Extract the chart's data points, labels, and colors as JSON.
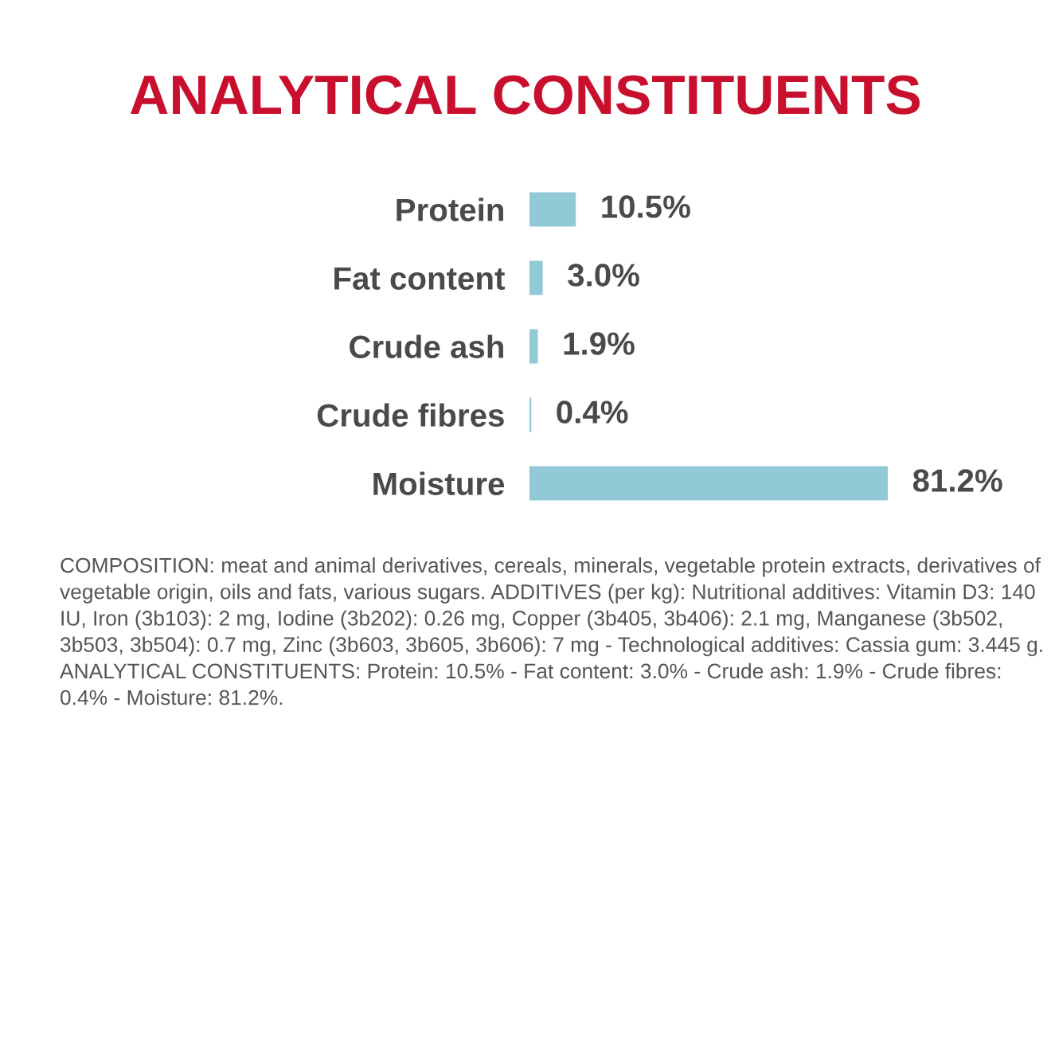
{
  "chart_data": {
    "type": "bar",
    "orientation": "horizontal",
    "title": "ANALYTICAL CONSTITUENTS",
    "categories": [
      "Protein",
      "Fat content",
      "Crude ash",
      "Crude fibres",
      "Moisture"
    ],
    "values": [
      10.5,
      3.0,
      1.9,
      0.4,
      81.2
    ],
    "value_labels": [
      "10.5%",
      "3.0%",
      "1.9%",
      "0.4%",
      "81.2%"
    ],
    "color": "#92c9d6",
    "tick_labels": "y",
    "grid": false,
    "legend": false,
    "annotations": [
      "COMPOSITION: meat and animal derivatives, cereals, minerals, vegetable protein extracts, derivatives of vegetable origin, oils and fats, various sugars. ADDITIVES (per kg): Nutritional additives: Vitamin D3: 140 IU, Iron (3b103): 2 mg, Iodine (3b202): 0.26 mg, Copper (3b405, 3b406): 2.1 mg, Manganese (3b502, 3b503, 3b504): 0.7 mg, Zinc (3b603, 3b605, 3b606): 7 mg - Technological additives: Cassia gum: 3.445 g. ANALYTICAL CONSTITUENTS: Protein: 10.5% - Fat content: 3.0% - Crude ash: 1.9% - Crude fibres: 0.4% - Moisture: 81.2%."
    ]
  }
}
